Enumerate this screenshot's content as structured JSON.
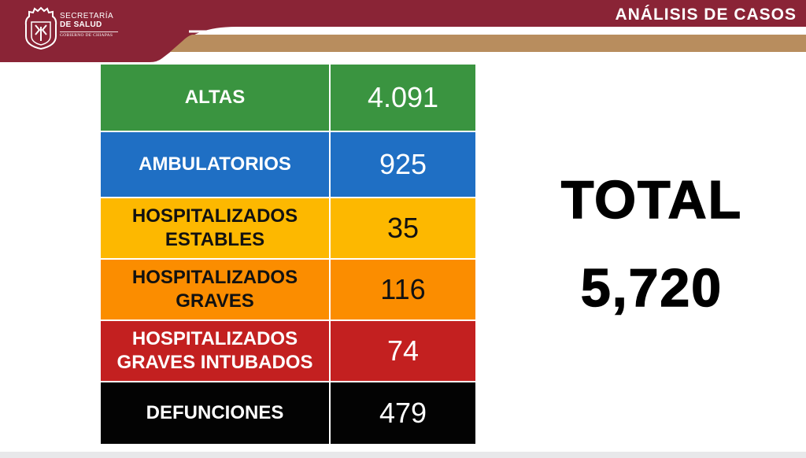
{
  "header": {
    "title": "ANÁLISIS DE CASOS",
    "logo": {
      "line1": "SECRETARÍA",
      "line2": "DE SALUD",
      "line3": "GOBIERNO DE CHIAPAS",
      "icon": "chiapas-seal-icon"
    },
    "colors": {
      "maroon": "#8a2436",
      "gold": "#b88d5e"
    }
  },
  "table": {
    "rows": [
      {
        "label_lines": [
          "ALTAS"
        ],
        "value": "4.091",
        "color": "#3a9440"
      },
      {
        "label_lines": [
          "AMBULATORIOS"
        ],
        "value": "925",
        "color": "#1f6fc4"
      },
      {
        "label_lines": [
          "HOSPITALIZADOS",
          "ESTABLES"
        ],
        "value": "35",
        "color": "#fdb800"
      },
      {
        "label_lines": [
          "HOSPITALIZADOS",
          "GRAVES"
        ],
        "value": "116",
        "color": "#fb8d00"
      },
      {
        "label_lines": [
          "HOSPITALIZADOS",
          "GRAVES INTUBADOS"
        ],
        "value": "74",
        "color": "#c32020"
      },
      {
        "label_lines": [
          "DEFUNCIONES"
        ],
        "value": "479",
        "color": "#030303"
      }
    ]
  },
  "total": {
    "label": "TOTAL",
    "value": "5,720"
  }
}
